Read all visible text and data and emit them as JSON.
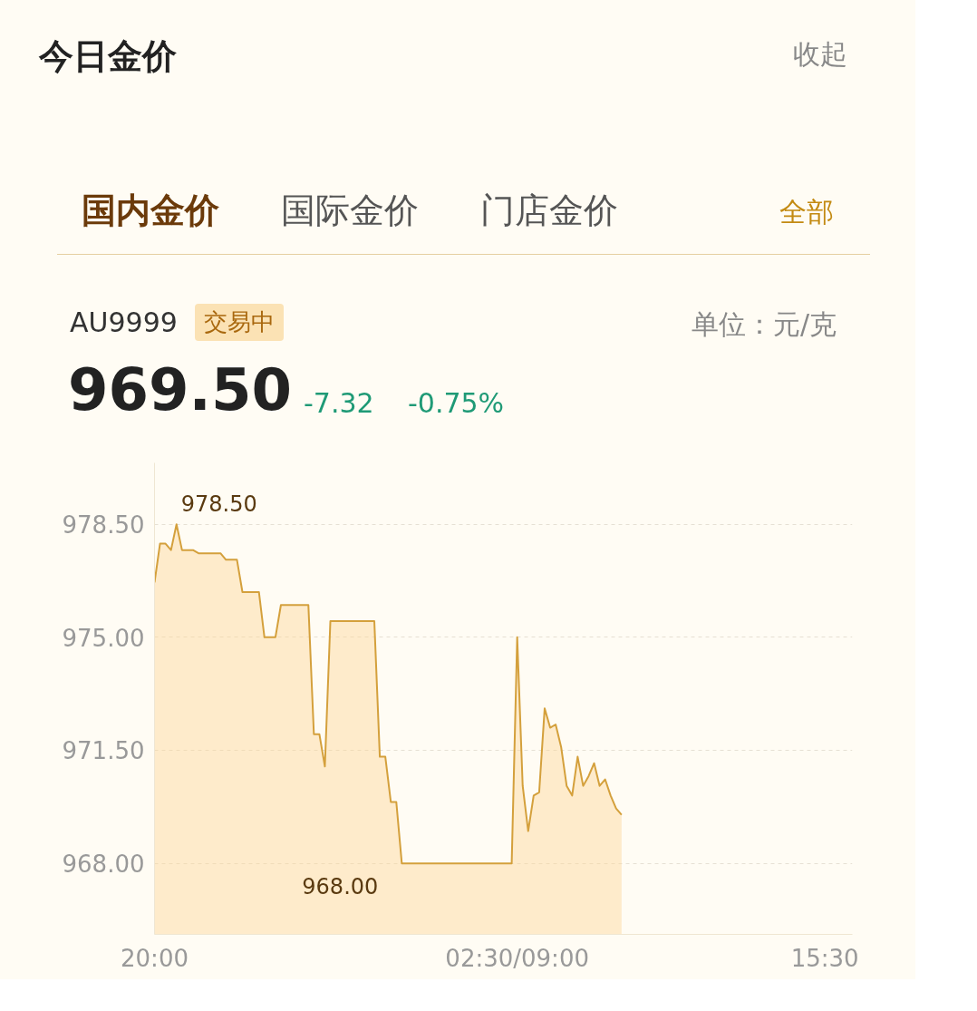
{
  "chart_data": {
    "type": "area",
    "title": "今日金价",
    "subtitle": "AU9999",
    "annotations": [
      "收起",
      "国内金价",
      "国际金价",
      "门店金价",
      "全部",
      "交易中",
      "单位：元/克",
      "969.50",
      "-7.32",
      "-0.75%",
      "978.50",
      "968.00"
    ],
    "categories": [
      "20:00",
      null,
      null,
      null,
      null,
      null,
      null,
      null,
      null,
      null,
      null,
      null,
      null,
      null,
      null,
      null,
      null,
      null,
      null,
      null,
      null,
      null,
      null,
      null,
      null,
      null,
      null,
      null,
      null,
      null,
      null,
      null,
      null,
      null,
      null,
      null,
      null,
      null,
      null,
      null,
      null,
      null,
      null,
      null,
      null,
      null,
      null,
      null,
      null,
      null,
      null,
      null,
      null,
      null,
      null,
      null,
      null,
      null,
      null,
      null,
      null,
      null,
      null,
      null,
      null,
      null,
      "02:30/09:00",
      null,
      null,
      null,
      null,
      null,
      null,
      null,
      null,
      null,
      null,
      null,
      null,
      null,
      null,
      null,
      null,
      null,
      null,
      null,
      null,
      null,
      null,
      null,
      null,
      null,
      null,
      null,
      null,
      null,
      null,
      null,
      null,
      null,
      null,
      null,
      null,
      null,
      null,
      null,
      null,
      null,
      null,
      null,
      null,
      null,
      null,
      null,
      null,
      null,
      null,
      null,
      null,
      null,
      null,
      null,
      "15:30",
      null,
      null,
      null,
      null,
      null
    ],
    "series": [
      {
        "color": "#d4a03c",
        "values": [
          976.7,
          977.9,
          977.9,
          977.7,
          978.5,
          977.7,
          977.7,
          977.7,
          977.6,
          977.6,
          977.6,
          977.6,
          977.6,
          977.4,
          977.4,
          977.4,
          976.4,
          976.4,
          976.4,
          976.4,
          975.0,
          975.0,
          975.0,
          976.0,
          976.0,
          976.0,
          976.0,
          976.0,
          976.0,
          972.0,
          972.0,
          971.0,
          975.5,
          975.5,
          975.5,
          975.5,
          975.5,
          975.5,
          975.5,
          975.5,
          975.5,
          971.3,
          971.3,
          969.9,
          969.9,
          968.0,
          968.0,
          968.0,
          968.0,
          968.0,
          968.0,
          968.0,
          968.0,
          968.0,
          968.0,
          968.0,
          968.0,
          968.0,
          968.0,
          968.0,
          968.0,
          968.0,
          968.0,
          968.0,
          968.0,
          968.0,
          975.0,
          970.4,
          969.0,
          970.1,
          970.2,
          972.8,
          972.2,
          972.3,
          971.6,
          970.4,
          970.1,
          971.3,
          970.4,
          970.7,
          971.1,
          970.4,
          970.6,
          970.1,
          969.7,
          969.5,
          null,
          null,
          null,
          null,
          null,
          null,
          null,
          null,
          null,
          null,
          null,
          null,
          null,
          null,
          null,
          null,
          null,
          null,
          null,
          null,
          null,
          null,
          null,
          null,
          null,
          null,
          null,
          null,
          null,
          null,
          null,
          null,
          null,
          null,
          null,
          null,
          null,
          null,
          null,
          null,
          null,
          null
        ]
      }
    ],
    "ylim": [
      965.8,
      980.4
    ],
    "yticks": [
      {
        "value": 968,
        "label": "968.00"
      },
      {
        "value": 971.5,
        "label": "971.50"
      },
      {
        "value": 975,
        "label": "975.00"
      },
      {
        "value": 978.5,
        "label": "978.50"
      }
    ],
    "grid": "y",
    "line_style": "solid"
  }
}
